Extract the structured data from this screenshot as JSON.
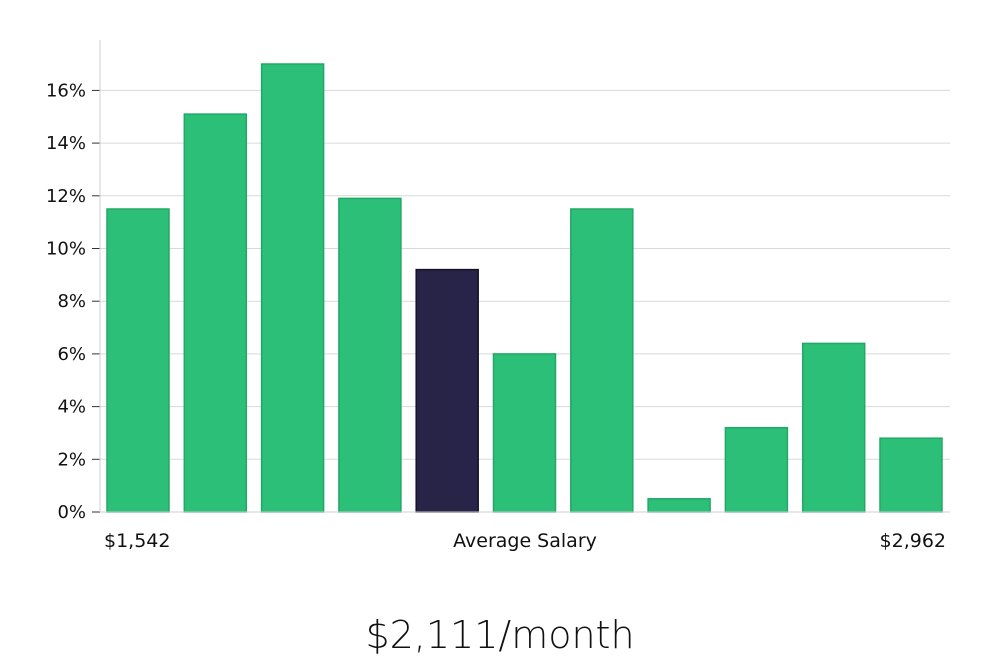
{
  "chart_data": {
    "type": "bar",
    "values": [
      11.5,
      15.1,
      17.0,
      11.9,
      9.2,
      6.0,
      11.5,
      0.5,
      3.2,
      6.4,
      2.8
    ],
    "highlight_index": 4,
    "bar_color": "#2bbf78",
    "bar_border_color": "#22a866",
    "highlight_color": "#282447",
    "highlight_border_color": "#14122a",
    "ylim": [
      0,
      18
    ],
    "y_ticks": [
      {
        "value": 0,
        "label": "0%"
      },
      {
        "value": 2,
        "label": "2%"
      },
      {
        "value": 4,
        "label": "4%"
      },
      {
        "value": 6,
        "label": "6%"
      },
      {
        "value": 8,
        "label": "8%"
      },
      {
        "value": 10,
        "label": "10%"
      },
      {
        "value": 12,
        "label": "12%"
      },
      {
        "value": 14,
        "label": "14%"
      },
      {
        "value": 16,
        "label": "16%"
      }
    ],
    "grid": true,
    "x_min_label": "$1,542",
    "x_max_label": "$2,962",
    "xlabel": "Average Salary",
    "legend": false
  },
  "headline": "$2,111/month"
}
